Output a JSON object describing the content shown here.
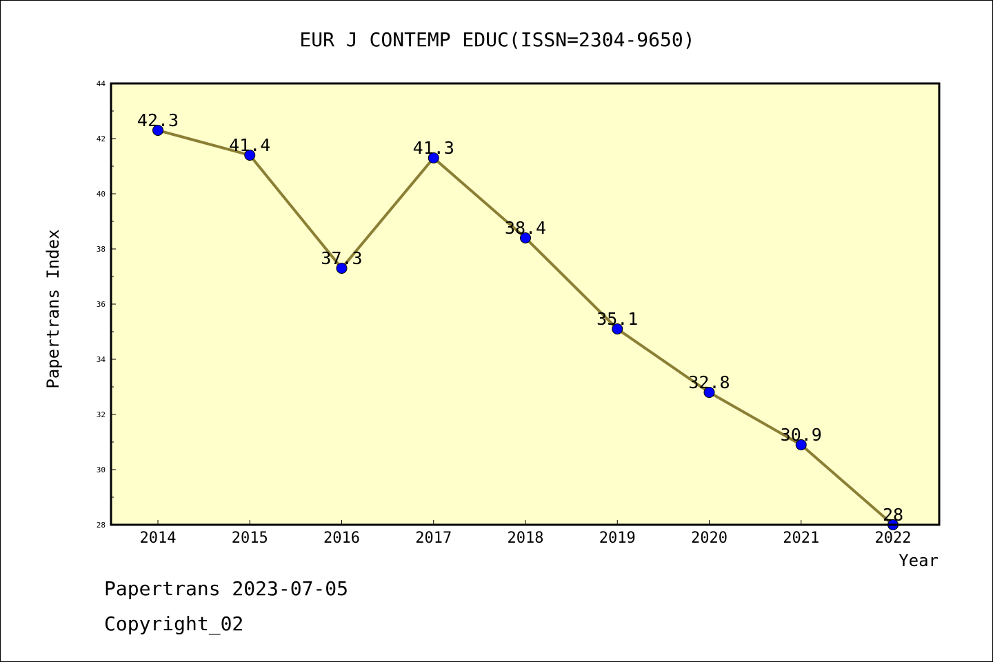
{
  "chart_data": {
    "type": "line",
    "title": "EUR J CONTEMP EDUC(ISSN=2304-9650)",
    "xlabel": "Year",
    "ylabel": "Papertrans Index",
    "categories": [
      "2014",
      "2015",
      "2016",
      "2017",
      "2018",
      "2019",
      "2020",
      "2021",
      "2022"
    ],
    "series": [
      {
        "values": [
          42.3,
          41.4,
          37.3,
          41.3,
          38.4,
          35.1,
          32.8,
          30.9,
          28
        ],
        "data_labels": [
          "42.3",
          "41.4",
          "37.3",
          "41.3",
          "38.4",
          "35.1",
          "32.8",
          "30.9",
          "28"
        ]
      }
    ],
    "ylim": [
      28,
      44
    ],
    "yticks": [
      "28",
      "30",
      "32",
      "34",
      "36",
      "38",
      "40",
      "42",
      "44"
    ],
    "grid": false,
    "legend": "none",
    "colors": {
      "plot_background": "#ffffcc",
      "line": "#8b7f35",
      "marker": "#0000ff"
    }
  },
  "footer": {
    "line1": "Papertrans 2023-07-05",
    "line2": "Copyright_02"
  }
}
